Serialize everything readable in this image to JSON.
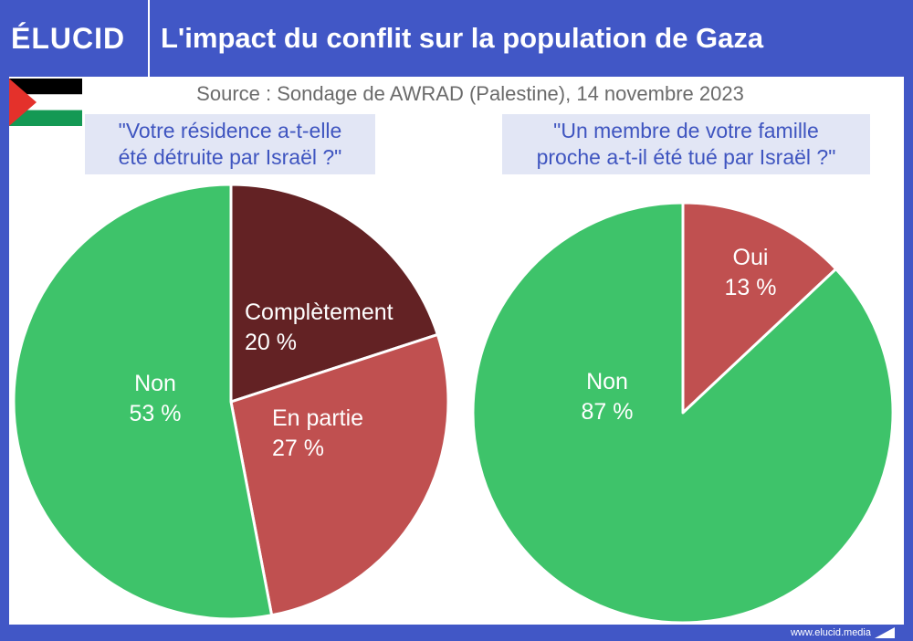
{
  "header": {
    "logo": "ÉLUCID",
    "title": "L'impact du conflit sur la population de Gaza"
  },
  "source": "Source : Sondage de AWRAD (Palestine), 14 novembre 2023",
  "colors": {
    "blue": "#4157c6",
    "green": "#3ec36a",
    "dark_red": "#632224",
    "red": "#c05050",
    "flag_black": "#000000",
    "flag_white": "#ffffff",
    "flag_green": "#149954",
    "flag_red": "#e4312b"
  },
  "chart_data": [
    {
      "type": "pie",
      "title": "\"Votre résidence a-t-elle été détruite par Israël ?\"",
      "title_lines": [
        "\"Votre résidence a-t-elle",
        "été détruite par Israël ?\""
      ],
      "slices": [
        {
          "label": "Complètement",
          "value": 20,
          "value_label": "20 %",
          "color": "#632224"
        },
        {
          "label": "En partie",
          "value": 27,
          "value_label": "27 %",
          "color": "#c05050"
        },
        {
          "label": "Non",
          "value": 53,
          "value_label": "53 %",
          "color": "#3ec36a"
        }
      ]
    },
    {
      "type": "pie",
      "title": "\"Un membre de votre famille proche a-t-il été tué par Israël ?\"",
      "title_lines": [
        "\"Un membre de votre famille",
        "proche a-t-il été tué par Israël ?\""
      ],
      "slices": [
        {
          "label": "Oui",
          "value": 13,
          "value_label": "13 %",
          "color": "#c05050"
        },
        {
          "label": "Non",
          "value": 87,
          "value_label": "87 %",
          "color": "#3ec36a"
        }
      ]
    }
  ],
  "footer": {
    "url": "www.elucid.media"
  }
}
